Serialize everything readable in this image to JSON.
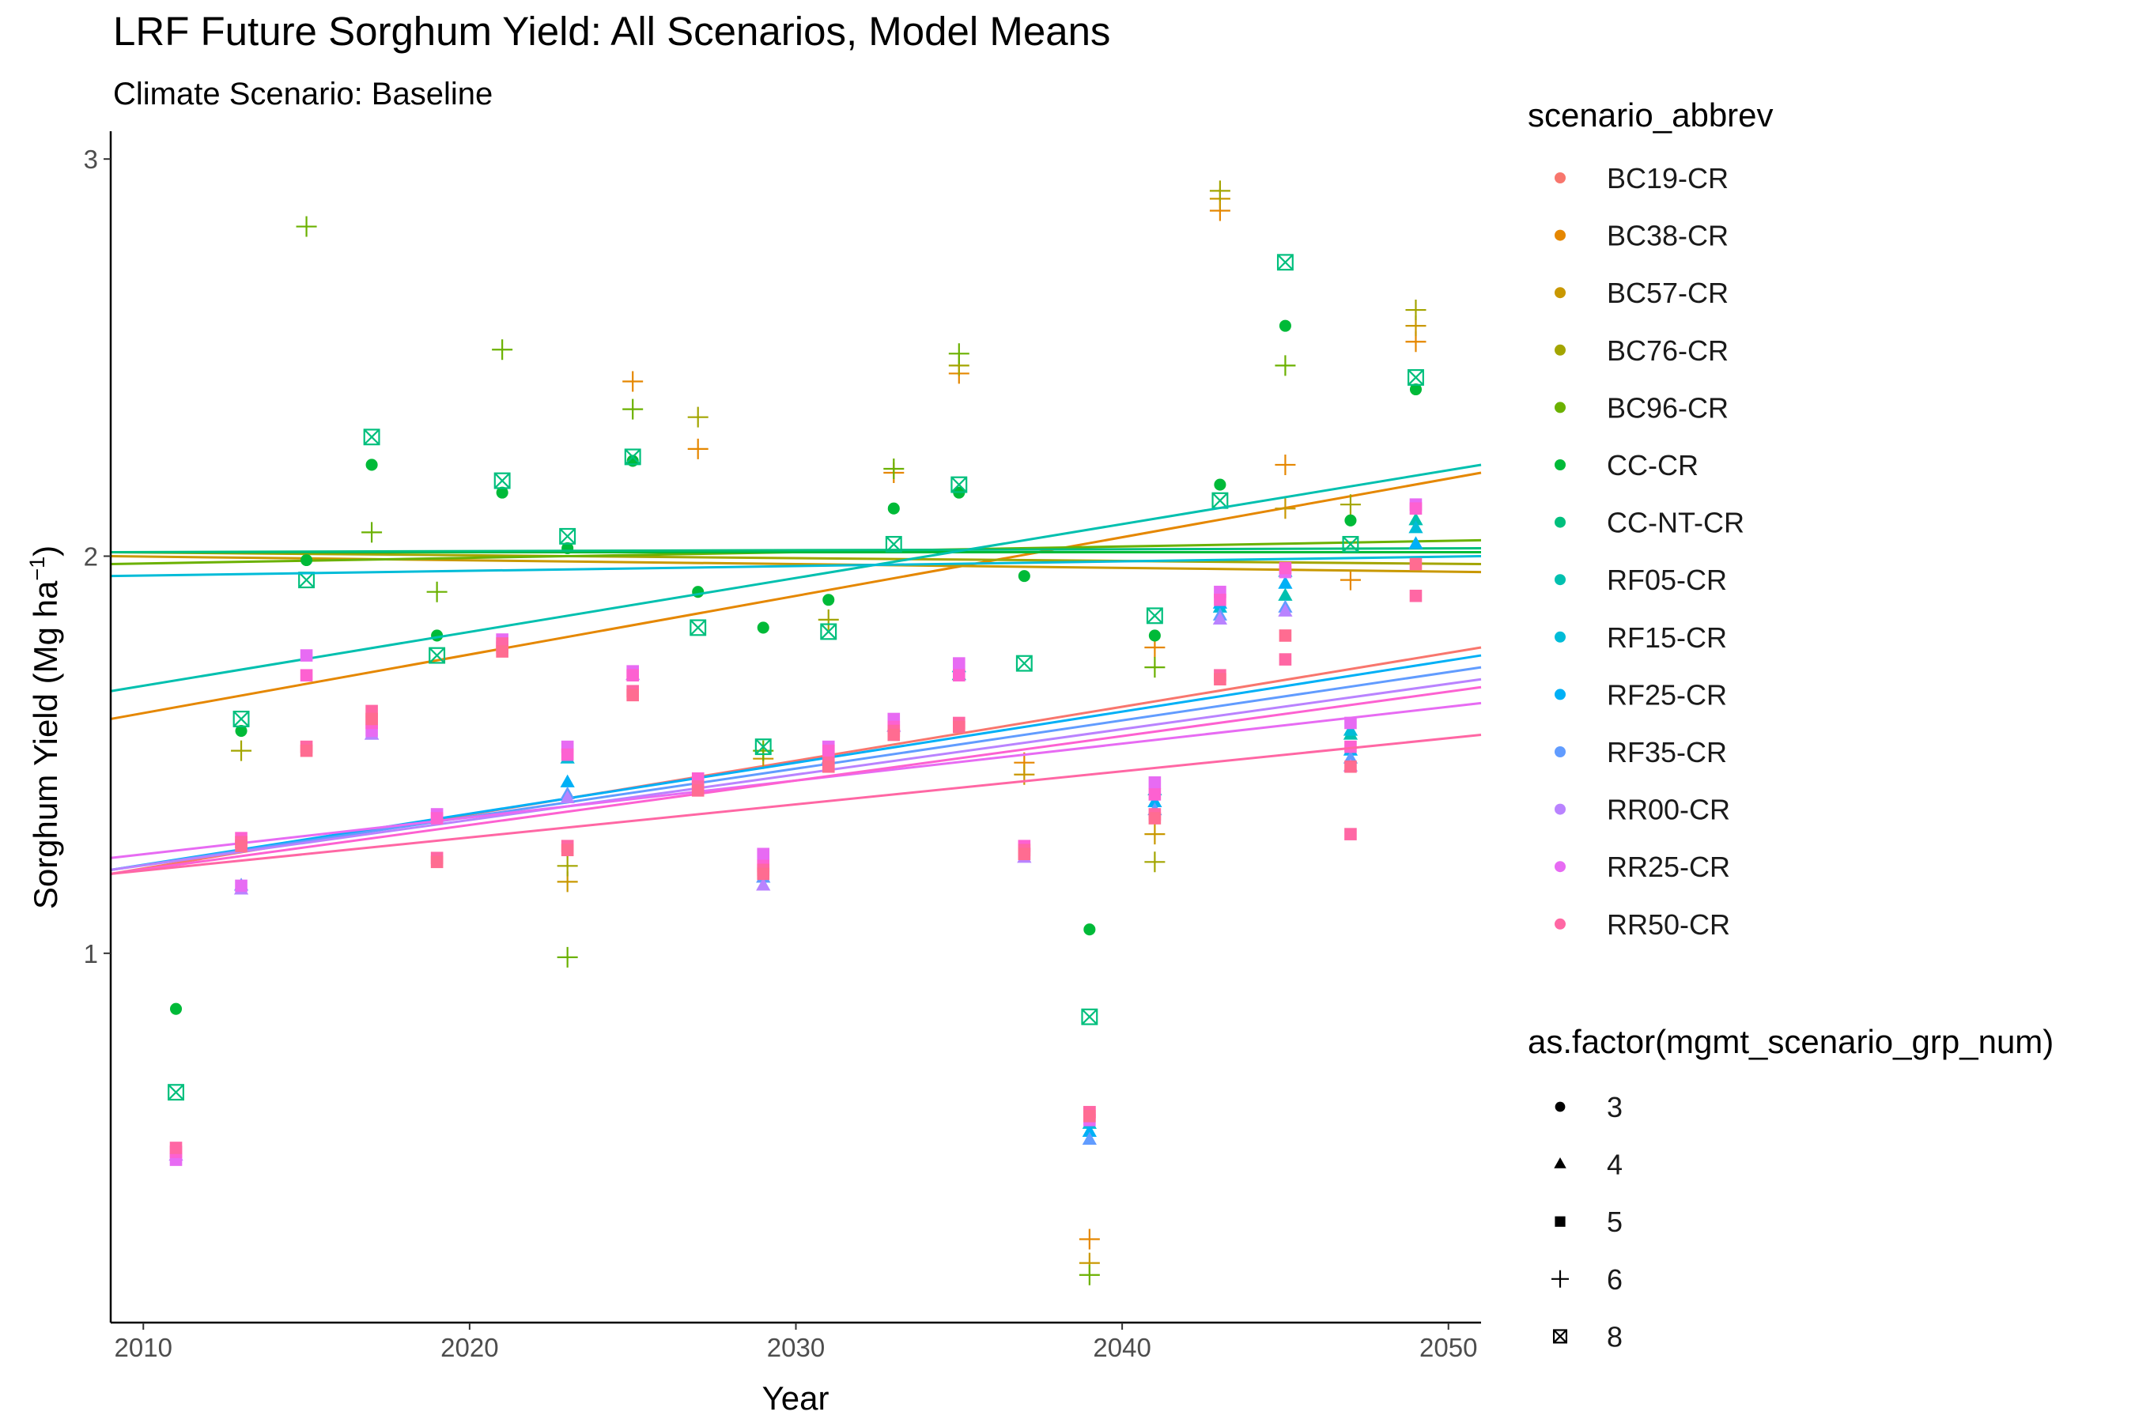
{
  "chart_data": {
    "type": "scatter",
    "title": "LRF  Future Sorghum Yield: All Scenarios, Model Means",
    "subtitle": "Climate Scenario: Baseline",
    "xlabel": "Year",
    "ylabel_main": "Sorghum Yield (Mg ha",
    "ylabel_sup": "−1",
    "ylabel_end": ")",
    "xlim": [
      2009,
      2051
    ],
    "ylim": [
      0.07,
      3.07
    ],
    "x_ticks": [
      2010,
      2020,
      2030,
      2040,
      2050
    ],
    "y_ticks": [
      1,
      2,
      3
    ],
    "grid": false,
    "legend_color_title": "scenario_abbrev",
    "legend_shape_title": "as.factor(mgmt_scenario_grp_num)",
    "series": [
      {
        "name": "BC19-CR",
        "color": "#F8766D",
        "group": 6,
        "trend": [
          [
            2009,
            1.2
          ],
          [
            2051,
            1.77
          ]
        ]
      },
      {
        "name": "BC38-CR",
        "color": "#E58700",
        "group": 6,
        "trend": [
          [
            2009,
            1.59
          ],
          [
            2051,
            2.21
          ]
        ],
        "points": [
          [
            2025,
            2.44
          ],
          [
            2027,
            2.27
          ],
          [
            2033,
            2.21
          ],
          [
            2035,
            2.46
          ],
          [
            2037,
            1.48
          ],
          [
            2039,
            0.28
          ],
          [
            2041,
            1.77
          ],
          [
            2043,
            2.87
          ],
          [
            2045,
            2.23
          ],
          [
            2047,
            1.94
          ],
          [
            2049,
            2.54
          ]
        ]
      },
      {
        "name": "BC57-CR",
        "color": "#C99800",
        "group": 6,
        "trend": [
          [
            2009,
            2.0
          ],
          [
            2051,
            1.96
          ]
        ],
        "points": [
          [
            2023,
            1.18
          ],
          [
            2029,
            1.49
          ],
          [
            2037,
            1.45
          ],
          [
            2039,
            0.22
          ],
          [
            2041,
            1.3
          ],
          [
            2043,
            2.9
          ],
          [
            2045,
            2.12
          ],
          [
            2049,
            2.58
          ]
        ]
      },
      {
        "name": "BC76-CR",
        "color": "#A3A500",
        "group": 6,
        "trend": [
          [
            2009,
            2.01
          ],
          [
            2051,
            1.98
          ]
        ],
        "points": [
          [
            2013,
            1.51
          ],
          [
            2023,
            1.22
          ],
          [
            2027,
            2.35
          ],
          [
            2031,
            1.84
          ],
          [
            2035,
            2.48
          ],
          [
            2041,
            1.23
          ],
          [
            2043,
            2.92
          ],
          [
            2047,
            2.13
          ],
          [
            2049,
            2.62
          ]
        ]
      },
      {
        "name": "BC96-CR",
        "color": "#6BB100",
        "group": 6,
        "trend": [
          [
            2009,
            1.98
          ],
          [
            2051,
            2.04
          ]
        ],
        "points": [
          [
            2015,
            2.83
          ],
          [
            2017,
            2.06
          ],
          [
            2019,
            1.91
          ],
          [
            2021,
            2.52
          ],
          [
            2023,
            0.99
          ],
          [
            2025,
            2.37
          ],
          [
            2029,
            1.51
          ],
          [
            2033,
            2.22
          ],
          [
            2035,
            2.51
          ],
          [
            2039,
            0.19
          ],
          [
            2041,
            1.72
          ],
          [
            2045,
            2.48
          ]
        ]
      },
      {
        "name": "CC-CR",
        "color": "#00BA38",
        "group": 3,
        "trend": [
          [
            2009,
            2.01
          ],
          [
            2051,
            2.01
          ]
        ],
        "points": [
          [
            2011,
            0.86
          ],
          [
            2013,
            1.56
          ],
          [
            2015,
            1.99
          ],
          [
            2017,
            2.23
          ],
          [
            2019,
            1.8
          ],
          [
            2021,
            2.16
          ],
          [
            2023,
            2.02
          ],
          [
            2025,
            2.24
          ],
          [
            2027,
            1.91
          ],
          [
            2029,
            1.82
          ],
          [
            2031,
            1.89
          ],
          [
            2033,
            2.12
          ],
          [
            2035,
            2.16
          ],
          [
            2037,
            1.95
          ],
          [
            2039,
            1.06
          ],
          [
            2041,
            1.8
          ],
          [
            2043,
            2.18
          ],
          [
            2045,
            2.58
          ],
          [
            2047,
            2.09
          ],
          [
            2049,
            2.42
          ]
        ]
      },
      {
        "name": "CC-NT-CR",
        "color": "#00BF7D",
        "group": 8,
        "trend": [
          [
            2009,
            2.01
          ],
          [
            2051,
            2.02
          ]
        ],
        "points": [
          [
            2011,
            0.65
          ],
          [
            2013,
            1.59
          ],
          [
            2015,
            1.94
          ],
          [
            2017,
            2.3
          ],
          [
            2019,
            1.75
          ],
          [
            2021,
            2.19
          ],
          [
            2023,
            2.05
          ],
          [
            2025,
            2.25
          ],
          [
            2027,
            1.82
          ],
          [
            2029,
            1.52
          ],
          [
            2031,
            1.81
          ],
          [
            2033,
            2.03
          ],
          [
            2035,
            2.18
          ],
          [
            2037,
            1.73
          ],
          [
            2039,
            0.84
          ],
          [
            2041,
            1.85
          ],
          [
            2043,
            2.14
          ],
          [
            2045,
            2.74
          ],
          [
            2047,
            2.03
          ],
          [
            2049,
            2.45
          ]
        ]
      },
      {
        "name": "RF05-CR",
        "color": "#00C0AF",
        "group": 4,
        "trend": [
          [
            2009,
            1.66
          ],
          [
            2051,
            2.23
          ]
        ],
        "points": [
          [
            2035,
            1.7
          ],
          [
            2045,
            1.9
          ],
          [
            2047,
            1.55
          ],
          [
            2049,
            2.09
          ]
        ]
      },
      {
        "name": "RF15-CR",
        "color": "#00BCD8",
        "group": 4,
        "trend": [
          [
            2009,
            1.95
          ],
          [
            2051,
            2.0
          ]
        ],
        "points": [
          [
            2023,
            1.49
          ],
          [
            2035,
            1.72
          ],
          [
            2039,
            0.57
          ],
          [
            2041,
            1.41
          ],
          [
            2043,
            1.87
          ],
          [
            2045,
            1.96
          ],
          [
            2047,
            1.56
          ],
          [
            2049,
            2.07
          ]
        ]
      },
      {
        "name": "RF25-CR",
        "color": "#00B0F6",
        "group": 4,
        "trend": [
          [
            2009,
            1.21
          ],
          [
            2051,
            1.75
          ]
        ],
        "points": [
          [
            2023,
            1.43
          ],
          [
            2039,
            0.55
          ],
          [
            2041,
            1.38
          ],
          [
            2043,
            1.88
          ],
          [
            2045,
            1.93
          ],
          [
            2047,
            1.51
          ],
          [
            2049,
            2.03
          ]
        ]
      },
      {
        "name": "RF35-CR",
        "color": "#619CFF",
        "group": 4,
        "trend": [
          [
            2009,
            1.21
          ],
          [
            2051,
            1.72
          ]
        ],
        "points": [
          [
            2013,
            1.17
          ],
          [
            2017,
            1.55
          ],
          [
            2023,
            1.4
          ],
          [
            2029,
            1.19
          ],
          [
            2031,
            1.49
          ],
          [
            2039,
            0.53
          ],
          [
            2041,
            1.36
          ],
          [
            2043,
            1.85
          ],
          [
            2045,
            1.87
          ],
          [
            2047,
            1.49
          ]
        ]
      },
      {
        "name": "RR00-CR",
        "color": "#B983FF",
        "group": 4,
        "trend": [
          [
            2009,
            1.21
          ],
          [
            2051,
            1.69
          ]
        ],
        "points": [
          [
            2011,
            0.49
          ],
          [
            2013,
            1.16
          ],
          [
            2017,
            1.55
          ],
          [
            2023,
            1.39
          ],
          [
            2025,
            1.7
          ],
          [
            2029,
            1.17
          ],
          [
            2033,
            1.57
          ],
          [
            2037,
            1.24
          ],
          [
            2043,
            1.84
          ],
          [
            2045,
            1.86
          ],
          [
            2047,
            1.47
          ]
        ]
      },
      {
        "name": "RR25-CR",
        "color": "#E76BF3",
        "group": 5,
        "trend": [
          [
            2009,
            1.24
          ],
          [
            2051,
            1.63
          ]
        ],
        "points": [
          [
            2011,
            0.48
          ],
          [
            2013,
            1.17
          ],
          [
            2015,
            1.75
          ],
          [
            2017,
            1.56
          ],
          [
            2019,
            1.35
          ],
          [
            2021,
            1.79
          ],
          [
            2023,
            1.52
          ],
          [
            2025,
            1.71
          ],
          [
            2027,
            1.43
          ],
          [
            2029,
            1.25
          ],
          [
            2031,
            1.52
          ],
          [
            2033,
            1.59
          ],
          [
            2035,
            1.73
          ],
          [
            2037,
            1.25
          ],
          [
            2039,
            0.58
          ],
          [
            2041,
            1.43
          ],
          [
            2043,
            1.91
          ],
          [
            2045,
            1.96
          ],
          [
            2047,
            1.58
          ],
          [
            2049,
            2.13
          ]
        ]
      },
      {
        "name": "RR25-CR",
        "color": "#FD61D1",
        "group": 5,
        "trend": [
          [
            2009,
            1.2
          ],
          [
            2051,
            1.67
          ]
        ],
        "points": [
          [
            2011,
            0.5
          ],
          [
            2013,
            1.29
          ],
          [
            2015,
            1.7
          ],
          [
            2017,
            1.58
          ],
          [
            2019,
            1.34
          ],
          [
            2021,
            1.77
          ],
          [
            2023,
            1.5
          ],
          [
            2025,
            1.7
          ],
          [
            2027,
            1.44
          ],
          [
            2029,
            1.22
          ],
          [
            2031,
            1.51
          ],
          [
            2033,
            1.57
          ],
          [
            2035,
            1.7
          ],
          [
            2037,
            1.27
          ],
          [
            2039,
            0.6
          ],
          [
            2041,
            1.4
          ],
          [
            2043,
            1.89
          ],
          [
            2045,
            1.97
          ],
          [
            2047,
            1.52
          ],
          [
            2049,
            2.12
          ]
        ]
      },
      {
        "name": "RR50-CR",
        "color": "#FF67A4",
        "group": 5,
        "trend": [
          [
            2009,
            1.2
          ],
          [
            2051,
            1.55
          ]
        ],
        "points": [
          [
            2011,
            0.51
          ],
          [
            2013,
            1.28
          ],
          [
            2015,
            1.52
          ],
          [
            2017,
            1.61
          ],
          [
            2019,
            1.24
          ],
          [
            2021,
            1.78
          ],
          [
            2023,
            1.27
          ],
          [
            2025,
            1.66
          ],
          [
            2027,
            1.42
          ],
          [
            2029,
            1.21
          ],
          [
            2031,
            1.48
          ],
          [
            2033,
            1.56
          ],
          [
            2035,
            1.58
          ],
          [
            2037,
            1.26
          ],
          [
            2039,
            0.6
          ],
          [
            2041,
            1.35
          ],
          [
            2043,
            1.7
          ],
          [
            2045,
            1.74
          ],
          [
            2047,
            1.3
          ],
          [
            2049,
            1.9
          ]
        ]
      },
      {
        "name": "RR50-CR",
        "color": "#FF6C91",
        "group": 5,
        "points": [
          [
            2013,
            1.27
          ],
          [
            2015,
            1.51
          ],
          [
            2017,
            1.59
          ],
          [
            2019,
            1.23
          ],
          [
            2021,
            1.76
          ],
          [
            2023,
            1.26
          ],
          [
            2025,
            1.65
          ],
          [
            2027,
            1.41
          ],
          [
            2029,
            1.2
          ],
          [
            2031,
            1.47
          ],
          [
            2033,
            1.55
          ],
          [
            2035,
            1.57
          ],
          [
            2037,
            1.25
          ],
          [
            2039,
            0.59
          ],
          [
            2041,
            1.34
          ],
          [
            2043,
            1.69
          ],
          [
            2045,
            1.8
          ],
          [
            2047,
            1.47
          ],
          [
            2049,
            1.98
          ]
        ]
      }
    ],
    "color_legend": [
      {
        "label": "BC19-CR",
        "color": "#F8766D"
      },
      {
        "label": "BC38-CR",
        "color": "#E58700"
      },
      {
        "label": "BC57-CR",
        "color": "#C99800"
      },
      {
        "label": "BC76-CR",
        "color": "#A3A500"
      },
      {
        "label": "BC96-CR",
        "color": "#6BB100"
      },
      {
        "label": "CC-CR",
        "color": "#00BA38"
      },
      {
        "label": "CC-NT-CR",
        "color": "#00BF7D"
      },
      {
        "label": "RF05-CR",
        "color": "#00C0AF"
      },
      {
        "label": "RF15-CR",
        "color": "#00BCD8"
      },
      {
        "label": "RF25-CR",
        "color": "#00B0F6"
      },
      {
        "label": "RF35-CR",
        "color": "#619CFF"
      },
      {
        "label": "RR00-CR",
        "color": "#B983FF"
      },
      {
        "label": "RR25-CR",
        "color": "#E76BF3"
      },
      {
        "label": "RR50-CR",
        "color": "#FF67A4"
      }
    ],
    "shape_legend": [
      {
        "label": "3",
        "shape": "circle"
      },
      {
        "label": "4",
        "shape": "triangle"
      },
      {
        "label": "5",
        "shape": "square"
      },
      {
        "label": "6",
        "shape": "plus"
      },
      {
        "label": "8",
        "shape": "boxed-x"
      }
    ]
  }
}
